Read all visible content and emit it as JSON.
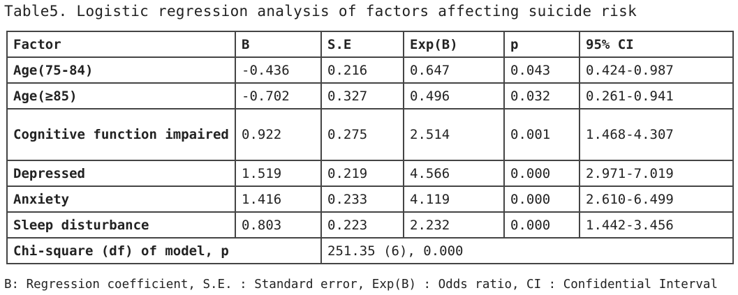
{
  "caption": "Table5. Logistic regression analysis of factors affecting suicide risk",
  "table": {
    "headers": [
      "Factor",
      "B",
      "S.E",
      "Exp(B)",
      "p",
      "95% CI"
    ],
    "rows": [
      [
        "Age(75-84)",
        "-0.436",
        "0.216",
        "0.647",
        "0.043",
        "0.424-0.987"
      ],
      [
        "Age(≥85)",
        "-0.702",
        "0.327",
        "0.496",
        "0.032",
        "0.261-0.941"
      ],
      [
        "Cognitive function impaired",
        "0.922",
        "0.275",
        "2.514",
        "0.001",
        "1.468-4.307"
      ],
      [
        "Depressed",
        "1.519",
        "0.219",
        "4.566",
        "0.000",
        "2.971-7.019"
      ],
      [
        "Anxiety",
        "1.416",
        "0.233",
        "4.119",
        "0.000",
        "2.610-6.499"
      ],
      [
        "Sleep disturbance",
        "0.803",
        "0.223",
        "2.232",
        "0.000",
        "1.442-3.456"
      ]
    ],
    "model_row": {
      "label": "Chi-square (df) of model, p",
      "value": "251.35 (6), 0.000"
    }
  },
  "footnote": "B: Regression coefficient, S.E. : Standard error, Exp(B) : Odds ratio, CI : Confidential Interval"
}
